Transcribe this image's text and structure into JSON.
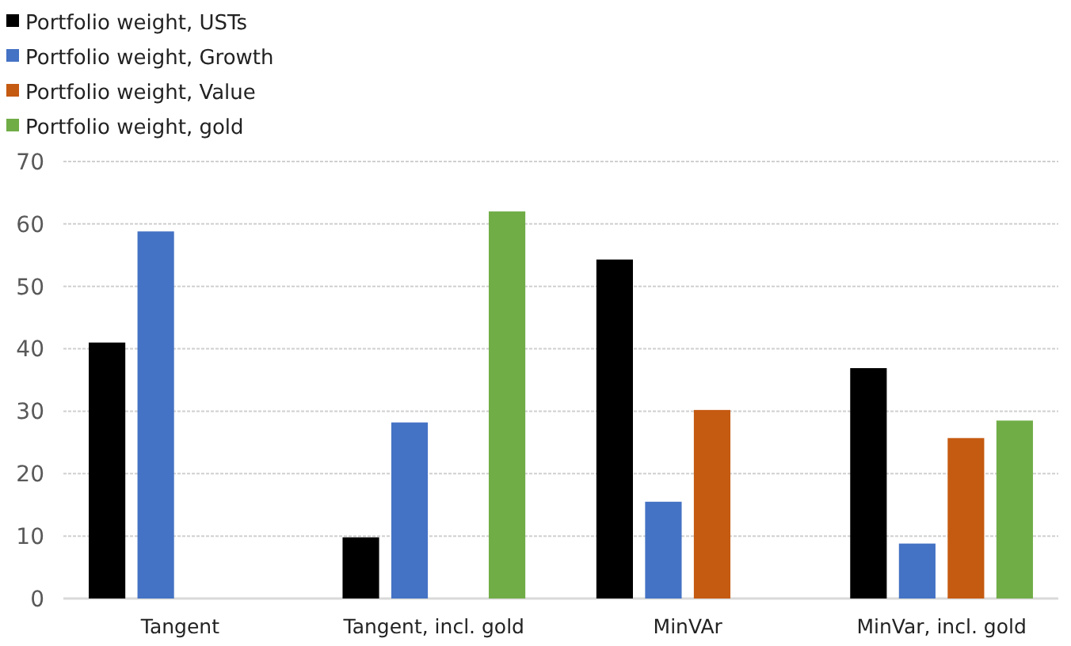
{
  "chart_data": {
    "type": "bar",
    "categories": [
      "Tangent",
      "Tangent, incl. gold",
      "MinVAr",
      "MinVar, incl. gold"
    ],
    "series": [
      {
        "name": "Portfolio weight, USTs",
        "color": "#000000",
        "values": [
          41,
          9.8,
          54.3,
          36.9
        ]
      },
      {
        "name": "Portfolio weight, Growth",
        "color": "#4472c4",
        "values": [
          58.8,
          28.2,
          15.5,
          8.8
        ]
      },
      {
        "name": "Portfolio weight, Value",
        "color": "#c55a11",
        "values": [
          null,
          null,
          30.2,
          25.7
        ]
      },
      {
        "name": "Portfolio weight, gold",
        "color": "#70ad47",
        "values": [
          null,
          62,
          null,
          28.5
        ]
      }
    ],
    "ylim": [
      0,
      70
    ],
    "yticks": [
      0,
      10,
      20,
      30,
      40,
      50,
      60,
      70
    ],
    "grid": "y",
    "legend": "top left"
  }
}
